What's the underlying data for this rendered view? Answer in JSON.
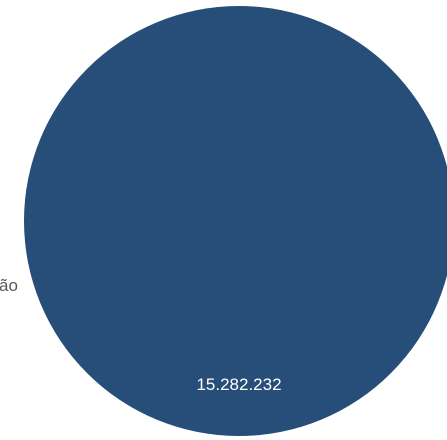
{
  "chart_data": {
    "type": "pie",
    "categories": [
      "ão"
    ],
    "values": [
      15282232
    ],
    "data_labels": [
      "15.282.232"
    ],
    "colors": [
      "#264E78"
    ],
    "title": "",
    "legend": "none"
  }
}
